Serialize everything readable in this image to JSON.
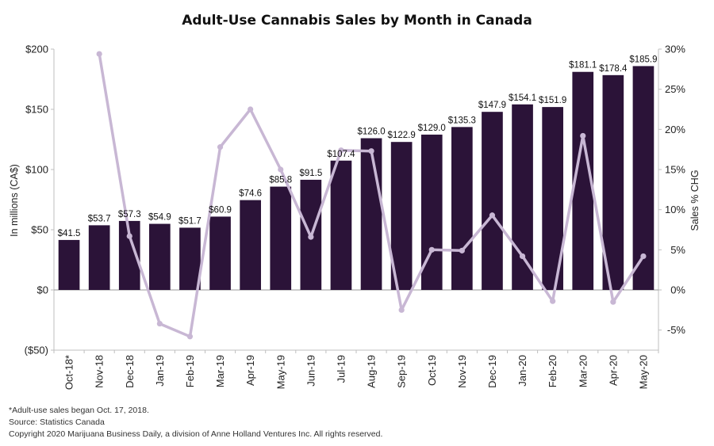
{
  "chart_data": {
    "type": "bar",
    "title": "Adult-Use Cannabis Sales by Month in Canada",
    "categories": [
      "Oct-18*",
      "Nov-18",
      "Dec-18",
      "Jan-19",
      "Feb-19",
      "Mar-19",
      "Apr-19",
      "May-19",
      "Jun-19",
      "Jul-19",
      "Aug-19",
      "Sep-19",
      "Oct-19",
      "Nov-19",
      "Dec-19",
      "Jan-20",
      "Feb-20",
      "Mar-20",
      "Apr-20",
      "May-20"
    ],
    "series": [
      {
        "type": "bar",
        "axis": "left",
        "color": "#2b1338",
        "values": [
          41.5,
          53.7,
          57.3,
          54.9,
          51.7,
          60.9,
          74.6,
          85.8,
          91.5,
          107.4,
          126.0,
          122.9,
          129.0,
          135.3,
          147.9,
          154.1,
          151.9,
          181.1,
          178.4,
          185.9
        ],
        "labels": [
          "$41.5",
          "$53.7",
          "$57.3",
          "$54.9",
          "$51.7",
          "$60.9",
          "$74.6",
          "$85.8",
          "$91.5",
          "$107.4",
          "$126.0",
          "$122.9",
          "$129.0",
          "$135.3",
          "$147.9",
          "$154.1",
          "$151.9",
          "$181.1",
          "$178.4",
          "$185.9"
        ]
      },
      {
        "type": "line",
        "axis": "right",
        "color": "#c8b7d4",
        "values": [
          null,
          29.4,
          6.7,
          -4.2,
          -5.8,
          17.8,
          22.5,
          15.0,
          6.6,
          17.4,
          17.3,
          -2.5,
          5.0,
          4.9,
          9.3,
          4.2,
          -1.4,
          19.2,
          -1.5,
          4.2
        ]
      }
    ],
    "ylabel": "In millions (CA$)",
    "ylim": [
      -50,
      200
    ],
    "yticks": [
      200,
      150,
      100,
      50,
      0,
      -50
    ],
    "ytick_labels": [
      "$200",
      "$150",
      "$100",
      "$50",
      "$0",
      "($50)"
    ],
    "y2label": "Sales % CHG",
    "y2lim": [
      -7.5,
      30
    ],
    "y2ticks": [
      30,
      25,
      20,
      15,
      10,
      5,
      0,
      -5
    ],
    "y2tick_labels": [
      "30%",
      "25%",
      "20%",
      "15%",
      "10%",
      "5%",
      "0%",
      "-5%"
    ],
    "grid": false
  },
  "footnotes": [
    "*Adult-use sales began Oct. 17, 2018.",
    "Source: Statistics Canada",
    "Copyright 2020 Marijuana Business Daily, a division of Anne Holland Ventures Inc. All rights reserved."
  ]
}
